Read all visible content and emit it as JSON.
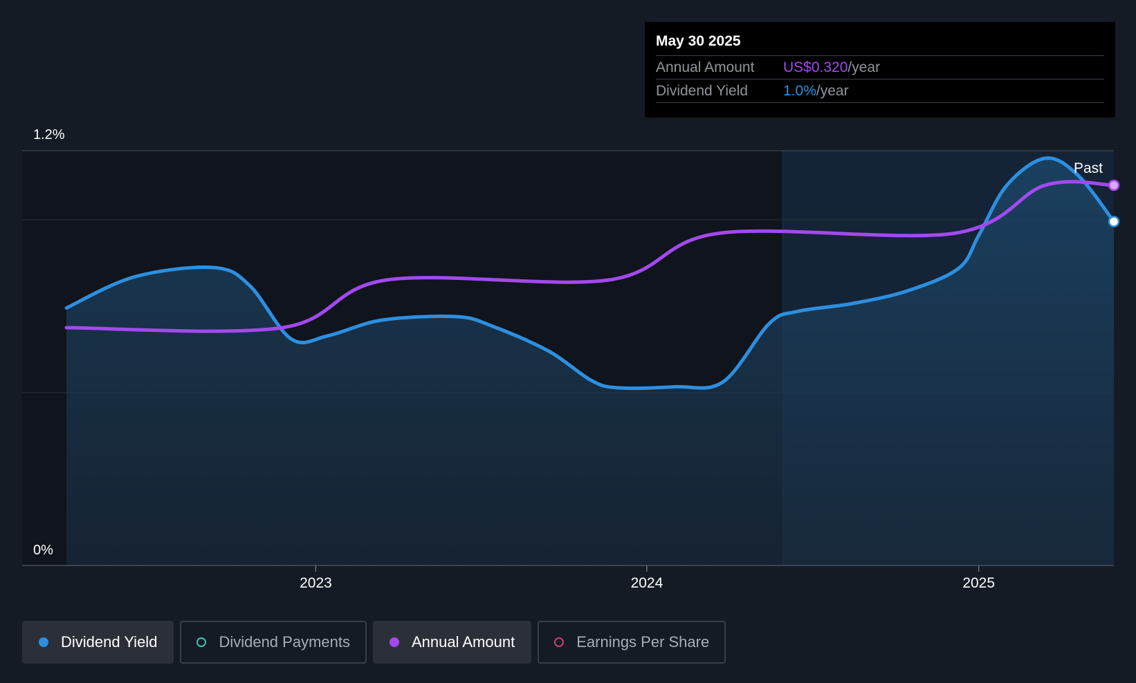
{
  "tooltip": {
    "date": "May 30 2025",
    "rows": [
      {
        "label": "Annual Amount",
        "value": "US$0.320",
        "unit": "/year",
        "color": "#a349f0"
      },
      {
        "label": "Dividend Yield",
        "value": "1.0%",
        "unit": "/year",
        "color": "#2d8fe0"
      }
    ]
  },
  "legend": [
    {
      "label": "Dividend Yield",
      "color": "#2d8fe0",
      "filled": true,
      "active": true
    },
    {
      "label": "Dividend Payments",
      "color": "#3cc4b4",
      "filled": false,
      "active": false
    },
    {
      "label": "Annual Amount",
      "color": "#a349f0",
      "filled": true,
      "active": true
    },
    {
      "label": "Earnings Per Share",
      "color": "#c2436f",
      "filled": false,
      "active": false
    }
  ],
  "chart_data": {
    "type": "line",
    "y_tick_labels": [
      "1.2%",
      "0%"
    ],
    "ylim": [
      0,
      1.2
    ],
    "xlim": [
      "2022-04-01",
      "2025-05-30"
    ],
    "x_ticks": [
      "2023-01-01",
      "2024-01-01",
      "2025-01-01"
    ],
    "x_tick_labels": [
      "2023",
      "2024",
      "2025"
    ],
    "past_label": "Past",
    "past_region_start": "2024-05-30",
    "series": [
      {
        "name": "Dividend Yield",
        "color": "#2d8fe0",
        "area": true,
        "points": [
          [
            "2022-04-01",
            0.745
          ],
          [
            "2022-06-15",
            0.835
          ],
          [
            "2022-09-10",
            0.862
          ],
          [
            "2022-10-20",
            0.81
          ],
          [
            "2022-12-05",
            0.655
          ],
          [
            "2023-01-15",
            0.665
          ],
          [
            "2023-03-15",
            0.71
          ],
          [
            "2023-06-05",
            0.72
          ],
          [
            "2023-07-15",
            0.692
          ],
          [
            "2023-09-15",
            0.62
          ],
          [
            "2023-11-01",
            0.535
          ],
          [
            "2023-12-01",
            0.514
          ],
          [
            "2024-02-01",
            0.517
          ],
          [
            "2024-03-25",
            0.531
          ],
          [
            "2024-05-15",
            0.7
          ],
          [
            "2024-06-15",
            0.735
          ],
          [
            "2024-08-15",
            0.758
          ],
          [
            "2024-10-15",
            0.795
          ],
          [
            "2024-12-10",
            0.86
          ],
          [
            "2025-01-01",
            0.955
          ],
          [
            "2025-02-01",
            1.1
          ],
          [
            "2025-03-15",
            1.178
          ],
          [
            "2025-04-20",
            1.13
          ],
          [
            "2025-05-30",
            0.995
          ]
        ]
      },
      {
        "name": "Annual Amount",
        "color": "#a349f0",
        "area": false,
        "points": [
          [
            "2022-04-01",
            0.688
          ],
          [
            "2022-11-25",
            0.688
          ],
          [
            "2023-03-20",
            0.826
          ],
          [
            "2023-11-20",
            0.826
          ],
          [
            "2024-03-20",
            0.961
          ],
          [
            "2024-12-05",
            0.961
          ],
          [
            "2025-03-15",
            1.1
          ],
          [
            "2025-05-30",
            1.1
          ]
        ]
      }
    ]
  }
}
